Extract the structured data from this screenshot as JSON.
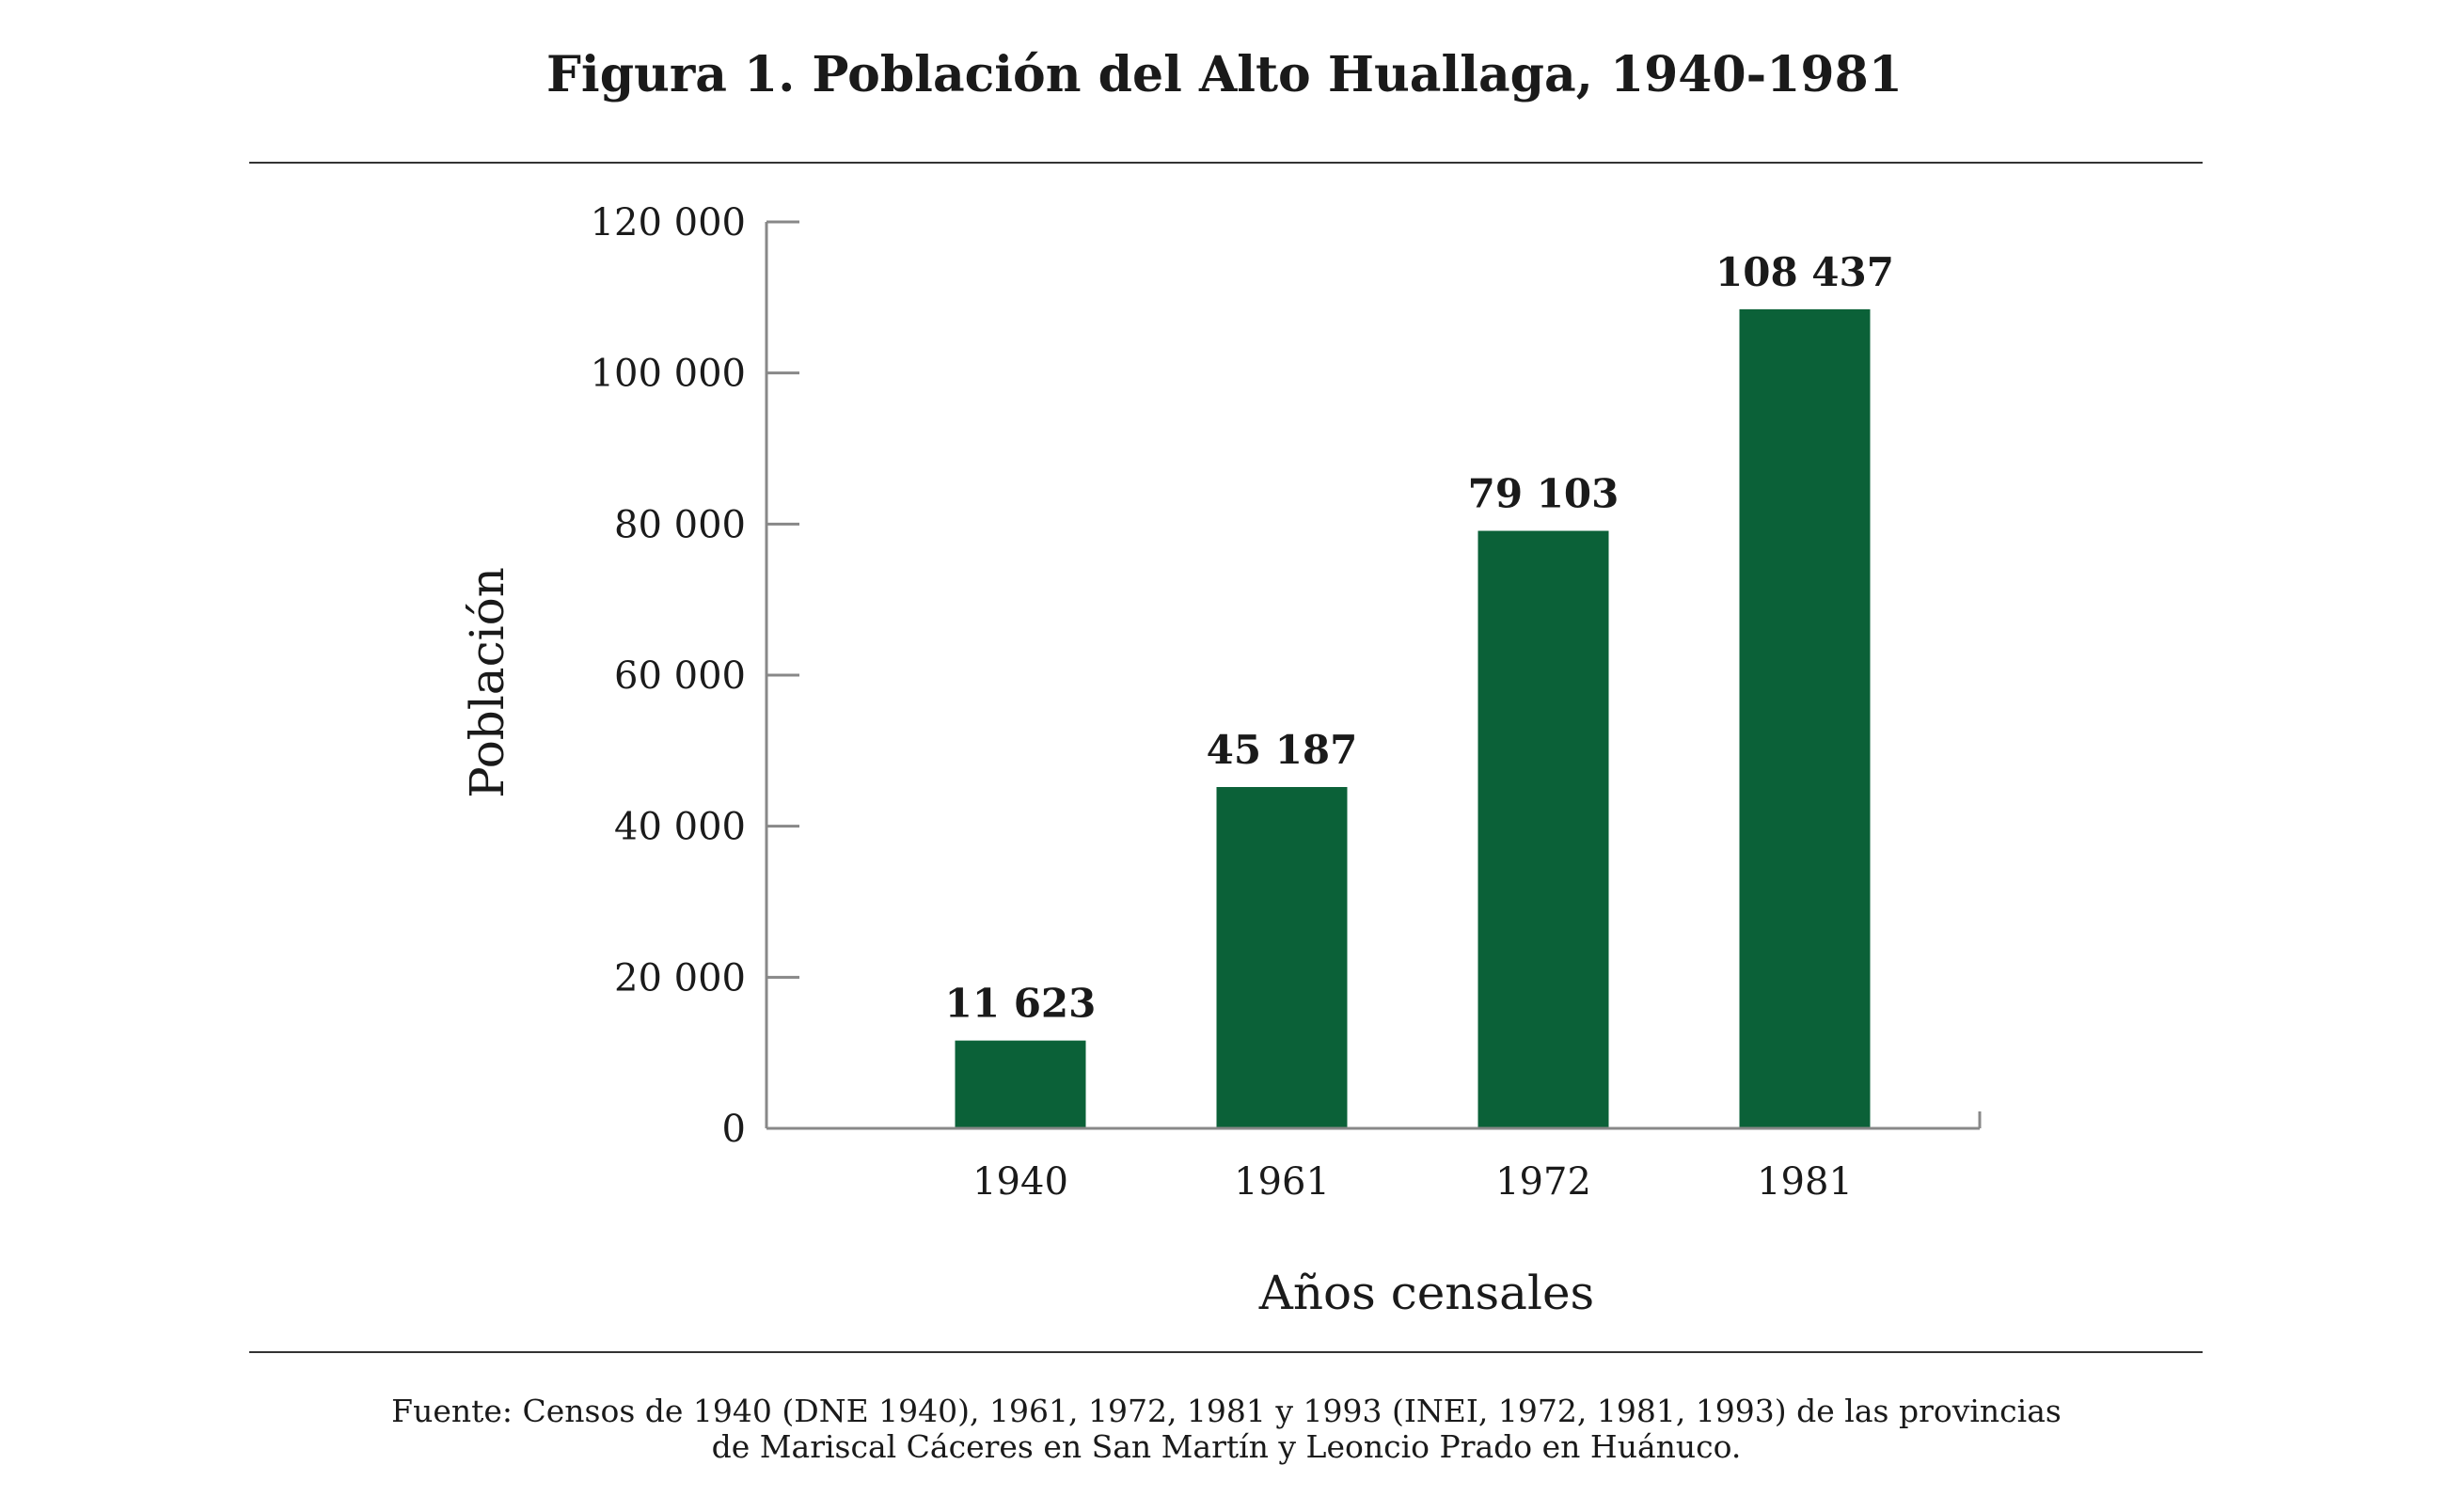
{
  "chart_data": {
    "type": "bar",
    "title": "Figura 1. Población del Alto Huallaga, 1940-1981",
    "xlabel": "Años censales",
    "ylabel": "Población",
    "categories": [
      "1940",
      "1961",
      "1972",
      "1981"
    ],
    "values": [
      11623,
      45187,
      79103,
      108437
    ],
    "value_labels": [
      "11 623",
      "45 187",
      "79 103",
      "108 437"
    ],
    "ylim": [
      0,
      120000
    ],
    "yticks": [
      0,
      20000,
      40000,
      60000,
      80000,
      100000,
      120000
    ],
    "ytick_labels": [
      "0",
      "20 000",
      "40 000",
      "60 000",
      "80 000",
      "100 000",
      "120 000"
    ],
    "grid": false,
    "bar_color": "#0b6138",
    "source_line1": "Fuente: Censos de 1940 (DNE 1940), 1961, 1972, 1981 y 1993 (INEI, 1972, 1981, 1993) de las provincias",
    "source_line2": "de Mariscal Cáceres en San Martín y Leoncio Prado en Huánuco."
  }
}
